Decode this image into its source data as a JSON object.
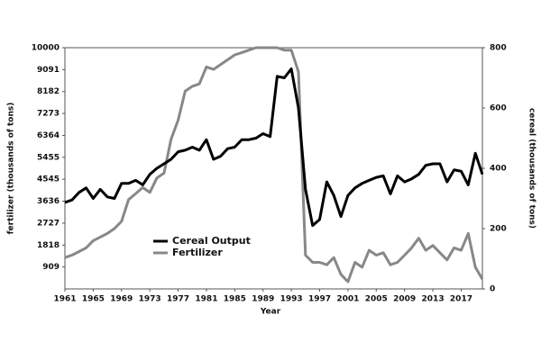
{
  "chart_data": {
    "type": "line",
    "x_label": "Year",
    "y_label": "fertilizer (thousands of tons)",
    "y2_label": "cereal (thousands of tons)",
    "x": [
      1961,
      1962,
      1963,
      1964,
      1965,
      1966,
      1967,
      1968,
      1969,
      1970,
      1971,
      1972,
      1973,
      1974,
      1975,
      1976,
      1977,
      1978,
      1979,
      1980,
      1981,
      1982,
      1983,
      1984,
      1985,
      1986,
      1987,
      1988,
      1989,
      1990,
      1991,
      1992,
      1993,
      1994,
      1995,
      1996,
      1997,
      1998,
      1999,
      2000,
      2001,
      2002,
      2003,
      2004,
      2005,
      2006,
      2007,
      2008,
      2009,
      2010,
      2011,
      2012,
      2013,
      2014,
      2015,
      2016,
      2017,
      2018,
      2019,
      2020
    ],
    "series": [
      {
        "name": "Cereal Output",
        "color": "#000000",
        "axis": "y2",
        "values": [
          287,
          295,
          320,
          335,
          300,
          330,
          305,
          300,
          350,
          350,
          360,
          345,
          380,
          400,
          415,
          430,
          455,
          460,
          470,
          460,
          495,
          430,
          440,
          465,
          470,
          495,
          495,
          500,
          515,
          505,
          705,
          700,
          730,
          600,
          330,
          210,
          230,
          355,
          310,
          240,
          310,
          335,
          350,
          360,
          370,
          375,
          315,
          375,
          355,
          365,
          380,
          410,
          415,
          415,
          355,
          395,
          390,
          345,
          450,
          380
        ]
      },
      {
        "name": "Fertilizer",
        "color": "#888888",
        "values": [
          1300,
          1400,
          1550,
          1700,
          2000,
          2150,
          2300,
          2500,
          2800,
          3700,
          3950,
          4200,
          4000,
          4600,
          4800,
          6200,
          7000,
          8200,
          8400,
          8500,
          9200,
          9100,
          9300,
          9500,
          9700,
          9800,
          9900,
          10000,
          10000,
          10000,
          10000,
          9900,
          9900,
          9000,
          1400,
          1100,
          1100,
          1000,
          1300,
          600,
          300,
          1100,
          900,
          1600,
          1400,
          1500,
          1000,
          1100,
          1400,
          1700,
          2100,
          1600,
          1800,
          1500,
          1200,
          1700,
          1600,
          2300,
          900,
          400
        ]
      }
    ],
    "xlim": [
      1961,
      2020
    ],
    "xticks": [
      1961,
      1965,
      1969,
      1973,
      1977,
      1981,
      1985,
      1989,
      1993,
      1997,
      2001,
      2005,
      2009,
      2013,
      2017
    ],
    "ylim": [
      0,
      10000
    ],
    "yticks": [
      909,
      1818,
      2727,
      3636,
      4545,
      5455,
      6364,
      7273,
      8182,
      9091,
      10000
    ],
    "y2lim": [
      0,
      800
    ],
    "y2ticks": [
      0,
      200,
      400,
      600,
      800
    ],
    "legend": "lower left"
  }
}
